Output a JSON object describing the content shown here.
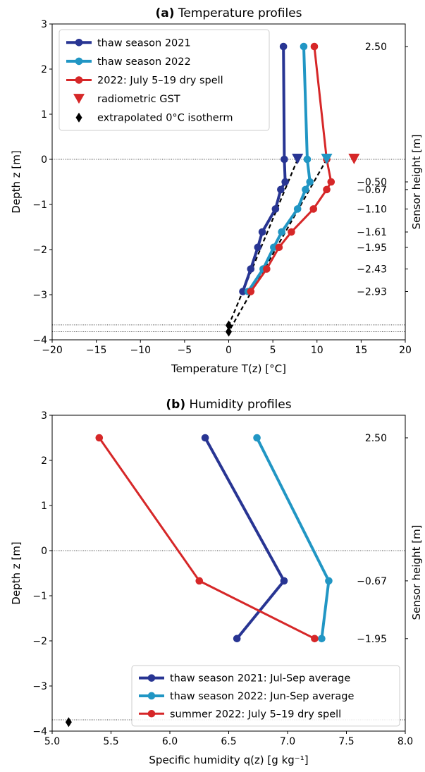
{
  "colors": {
    "season2021": "#283593",
    "season2022": "#2196c4",
    "dryspell": "#d62728",
    "black": "#000000"
  },
  "chart_data": [
    {
      "type": "line",
      "title_bold": "(a)",
      "title": "Temperature profiles",
      "xlabel": "Temperature T(z) [°C]",
      "ylabel": "Depth z [m]",
      "ylabel_right": "Sensor height [m]",
      "xlim": [
        -20,
        20
      ],
      "ylim": [
        -4,
        3
      ],
      "xticks": [
        -20,
        -15,
        -10,
        -5,
        0,
        5,
        10,
        15,
        20
      ],
      "xtick_labels": [
        "−20",
        "−15",
        "−10",
        "−5",
        "0",
        "5",
        "10",
        "15",
        "20"
      ],
      "yticks": [
        -4,
        -3,
        -2,
        -1,
        0,
        1,
        2,
        3
      ],
      "ytick_labels": [
        "−4",
        "−3",
        "−2",
        "−1",
        "0",
        "1",
        "2",
        "3"
      ],
      "right_ticks": [
        2.5,
        -0.5,
        -0.67,
        -1.1,
        -1.61,
        -1.95,
        -2.43,
        -2.93
      ],
      "right_tick_labels": [
        "2.50",
        "−0.50",
        "−0.67",
        "−1.10",
        "−1.61",
        "−1.95",
        "−2.43",
        "−2.93"
      ],
      "hlines": [
        0,
        -3.67,
        -3.82
      ],
      "grid": false,
      "legend_position": "top-left",
      "series": [
        {
          "name": "thaw season 2021",
          "color_key": "season2021",
          "width": 4,
          "x": [
            6.2,
            6.3,
            6.4,
            5.9,
            5.3,
            3.8,
            3.3,
            2.5,
            1.6
          ],
          "y": [
            2.5,
            0,
            -0.5,
            -0.67,
            -1.1,
            -1.61,
            -1.95,
            -2.43,
            -2.93
          ]
        },
        {
          "name": "thaw season 2022",
          "color_key": "season2022",
          "width": 4,
          "x": [
            8.5,
            8.9,
            9.2,
            8.7,
            7.8,
            6.0,
            5.1,
            3.9,
            2.2
          ],
          "y": [
            2.5,
            0,
            -0.5,
            -0.67,
            -1.1,
            -1.61,
            -1.95,
            -2.43,
            -2.93
          ]
        },
        {
          "name": "2022: July 5–19 dry spell",
          "color_key": "dryspell",
          "width": 3,
          "x": [
            9.7,
            11.1,
            11.6,
            11.1,
            9.6,
            7.1,
            5.7,
            4.3,
            2.5
          ],
          "y": [
            2.5,
            0,
            -0.5,
            -0.67,
            -1.1,
            -1.61,
            -1.95,
            -2.43,
            -2.93
          ]
        }
      ],
      "gst": {
        "name": "radiometric GST",
        "points": [
          {
            "x": 7.8,
            "y": 0,
            "color_key": "season2021"
          },
          {
            "x": 11.1,
            "y": 0,
            "color_key": "season2022"
          },
          {
            "x": 14.2,
            "y": 0,
            "color_key": "dryspell"
          }
        ]
      },
      "isotherm": {
        "name": "extrapolated 0°C isotherm",
        "points": [
          {
            "x": 0,
            "y": -3.68
          },
          {
            "x": 0,
            "y": -3.82
          }
        ]
      },
      "dashed_lines": [
        {
          "x": [
            7.8,
            0
          ],
          "y": [
            0,
            -3.68
          ]
        },
        {
          "x": [
            11.1,
            0
          ],
          "y": [
            0,
            -3.82
          ]
        }
      ]
    },
    {
      "type": "line",
      "title_bold": "(b)",
      "title": "Humidity profiles",
      "xlabel": "Specific humidity q(z) [g kg⁻¹]",
      "ylabel": "Depth z [m]",
      "ylabel_right": "Sensor height [m]",
      "xlim": [
        5.0,
        8.0
      ],
      "ylim": [
        -4,
        3
      ],
      "xticks": [
        5.0,
        5.5,
        6.0,
        6.5,
        7.0,
        7.5,
        8.0
      ],
      "xtick_labels": [
        "5.0",
        "5.5",
        "6.0",
        "6.5",
        "7.0",
        "7.5",
        "8.0"
      ],
      "yticks": [
        -4,
        -3,
        -2,
        -1,
        0,
        1,
        2,
        3
      ],
      "ytick_labels": [
        "−4",
        "−3",
        "−2",
        "−1",
        "0",
        "1",
        "2",
        "3"
      ],
      "right_ticks": [
        2.5,
        -0.67,
        -1.95
      ],
      "right_tick_labels": [
        "2.50",
        "−0.67",
        "−1.95"
      ],
      "hlines": [
        0,
        -3.75
      ],
      "grid": false,
      "legend_position": "bottom-right",
      "series": [
        {
          "name": "thaw season 2021: Jul-Sep average",
          "color_key": "season2021",
          "width": 4,
          "x": [
            6.3,
            6.97,
            6.57
          ],
          "y": [
            2.5,
            -0.67,
            -1.95
          ]
        },
        {
          "name": "thaw season 2022: Jun-Sep average",
          "color_key": "season2022",
          "width": 4,
          "x": [
            6.74,
            7.35,
            7.29
          ],
          "y": [
            2.5,
            -0.67,
            -1.95
          ]
        },
        {
          "name": "summer 2022: July 5–19 dry spell",
          "color_key": "dryspell",
          "width": 3,
          "x": [
            5.4,
            6.25,
            7.23
          ],
          "y": [
            2.5,
            -0.67,
            -1.95
          ]
        }
      ],
      "markers": [
        {
          "x": 5.14,
          "y": -3.8,
          "shape": "diamond",
          "color_key": "black"
        }
      ]
    }
  ]
}
